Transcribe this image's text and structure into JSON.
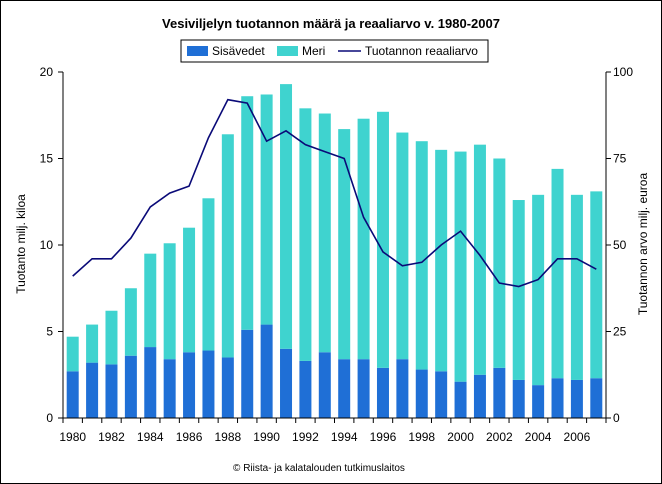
{
  "chart_data": {
    "type": "bar",
    "title": "Vesiviljelyn tuotannon määrä ja reaaliarvo v. 1980-2007",
    "ylabel": "Tuotanto milj. kiloa",
    "y2label": "Tuotannon arvo milj. euroa",
    "ylim": [
      0,
      20
    ],
    "y2lim": [
      0,
      100
    ],
    "yticks": [
      "0",
      "5",
      "10",
      "15",
      "20"
    ],
    "y2ticks": [
      "0",
      "25",
      "50",
      "75",
      "100"
    ],
    "stacked": true,
    "legend_position": "top",
    "categories": [
      1980,
      1981,
      1982,
      1983,
      1984,
      1985,
      1986,
      1987,
      1988,
      1989,
      1990,
      1991,
      1992,
      1993,
      1994,
      1995,
      1996,
      1997,
      1998,
      1999,
      2000,
      2001,
      2002,
      2003,
      2004,
      2005,
      2006,
      2007
    ],
    "xtick_labels": [
      "1980",
      "1982",
      "1984",
      "1986",
      "1988",
      "1990",
      "1992",
      "1994",
      "1996",
      "1998",
      "2000",
      "2002",
      "2004",
      "2006"
    ],
    "series": [
      {
        "name": "Sisävedet",
        "kind": "bar",
        "color": "#1f6fd6",
        "values": [
          2.7,
          3.2,
          3.1,
          3.6,
          4.1,
          3.4,
          3.8,
          3.9,
          3.5,
          5.1,
          5.4,
          4.0,
          3.3,
          3.8,
          3.4,
          3.4,
          2.9,
          3.4,
          2.8,
          2.7,
          2.1,
          2.5,
          2.9,
          2.2,
          1.9,
          2.3,
          2.2,
          2.3
        ]
      },
      {
        "name": "Meri",
        "kind": "bar",
        "color": "#3fd3cf",
        "values": [
          2.0,
          2.2,
          3.1,
          3.9,
          5.4,
          6.7,
          7.2,
          8.8,
          12.9,
          13.5,
          13.3,
          15.3,
          14.6,
          13.8,
          13.3,
          13.9,
          14.8,
          13.1,
          13.2,
          12.8,
          13.3,
          13.3,
          12.1,
          10.4,
          11.0,
          12.1,
          10.7,
          10.8
        ]
      },
      {
        "name": "Tuotannon reaaliarvo",
        "kind": "line",
        "axis": "right",
        "color": "#0a0a78",
        "values": [
          41,
          46,
          46,
          52,
          61,
          65,
          67,
          81,
          92,
          91,
          80,
          83,
          79,
          77,
          75,
          58,
          48,
          44,
          45,
          50,
          54,
          47,
          39,
          38,
          40,
          46,
          46,
          43
        ]
      }
    ]
  },
  "credit": "© Riista- ja kalatalouden tutkimuslaitos"
}
